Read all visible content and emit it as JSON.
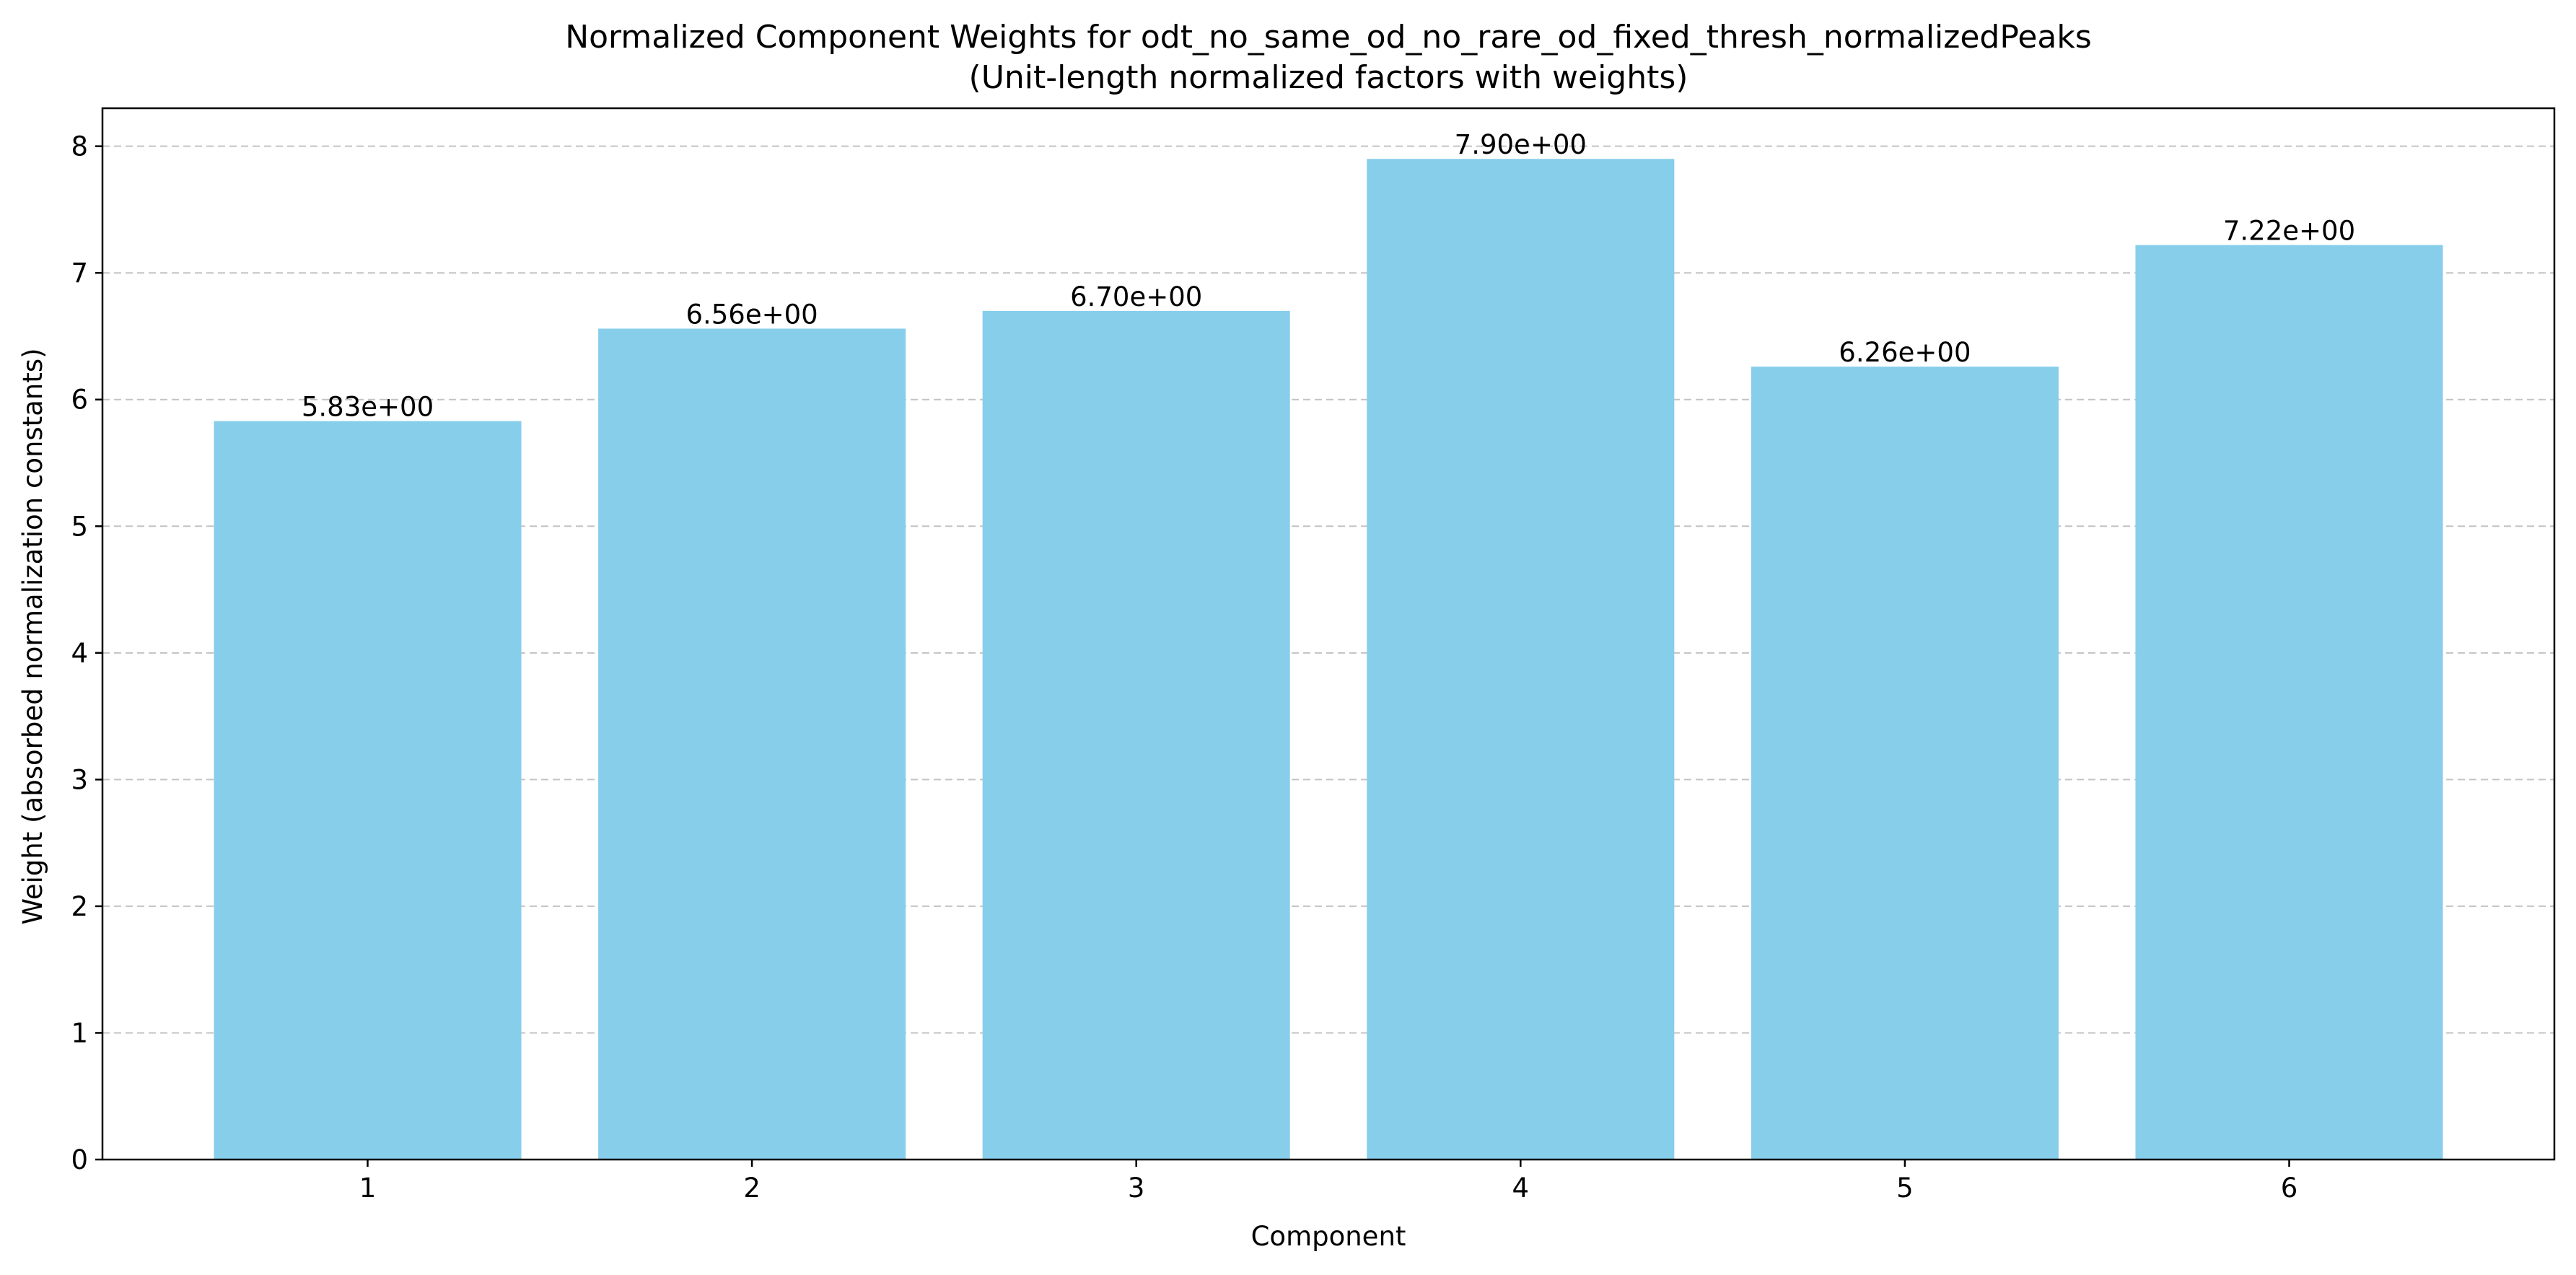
{
  "chart_data": {
    "type": "bar",
    "title": "Normalized Component Weights for odt_no_same_od_no_rare_od_fixed_thresh_normalizedPeaks",
    "subtitle": "(Unit-length normalized factors with weights)",
    "xlabel": "Component",
    "ylabel": "Weight (absorbed normalization constants)",
    "categories": [
      "1",
      "2",
      "3",
      "4",
      "5",
      "6"
    ],
    "values": [
      5.83,
      6.56,
      6.7,
      7.9,
      6.26,
      7.22
    ],
    "value_labels": [
      "5.83e+00",
      "6.56e+00",
      "6.70e+00",
      "7.90e+00",
      "6.26e+00",
      "7.22e+00"
    ],
    "ylim": [
      0,
      8.3
    ],
    "yticks": [
      0,
      1,
      2,
      3,
      4,
      5,
      6,
      7,
      8
    ],
    "grid": "y-dashed",
    "bar_color": "#87CEEB"
  }
}
